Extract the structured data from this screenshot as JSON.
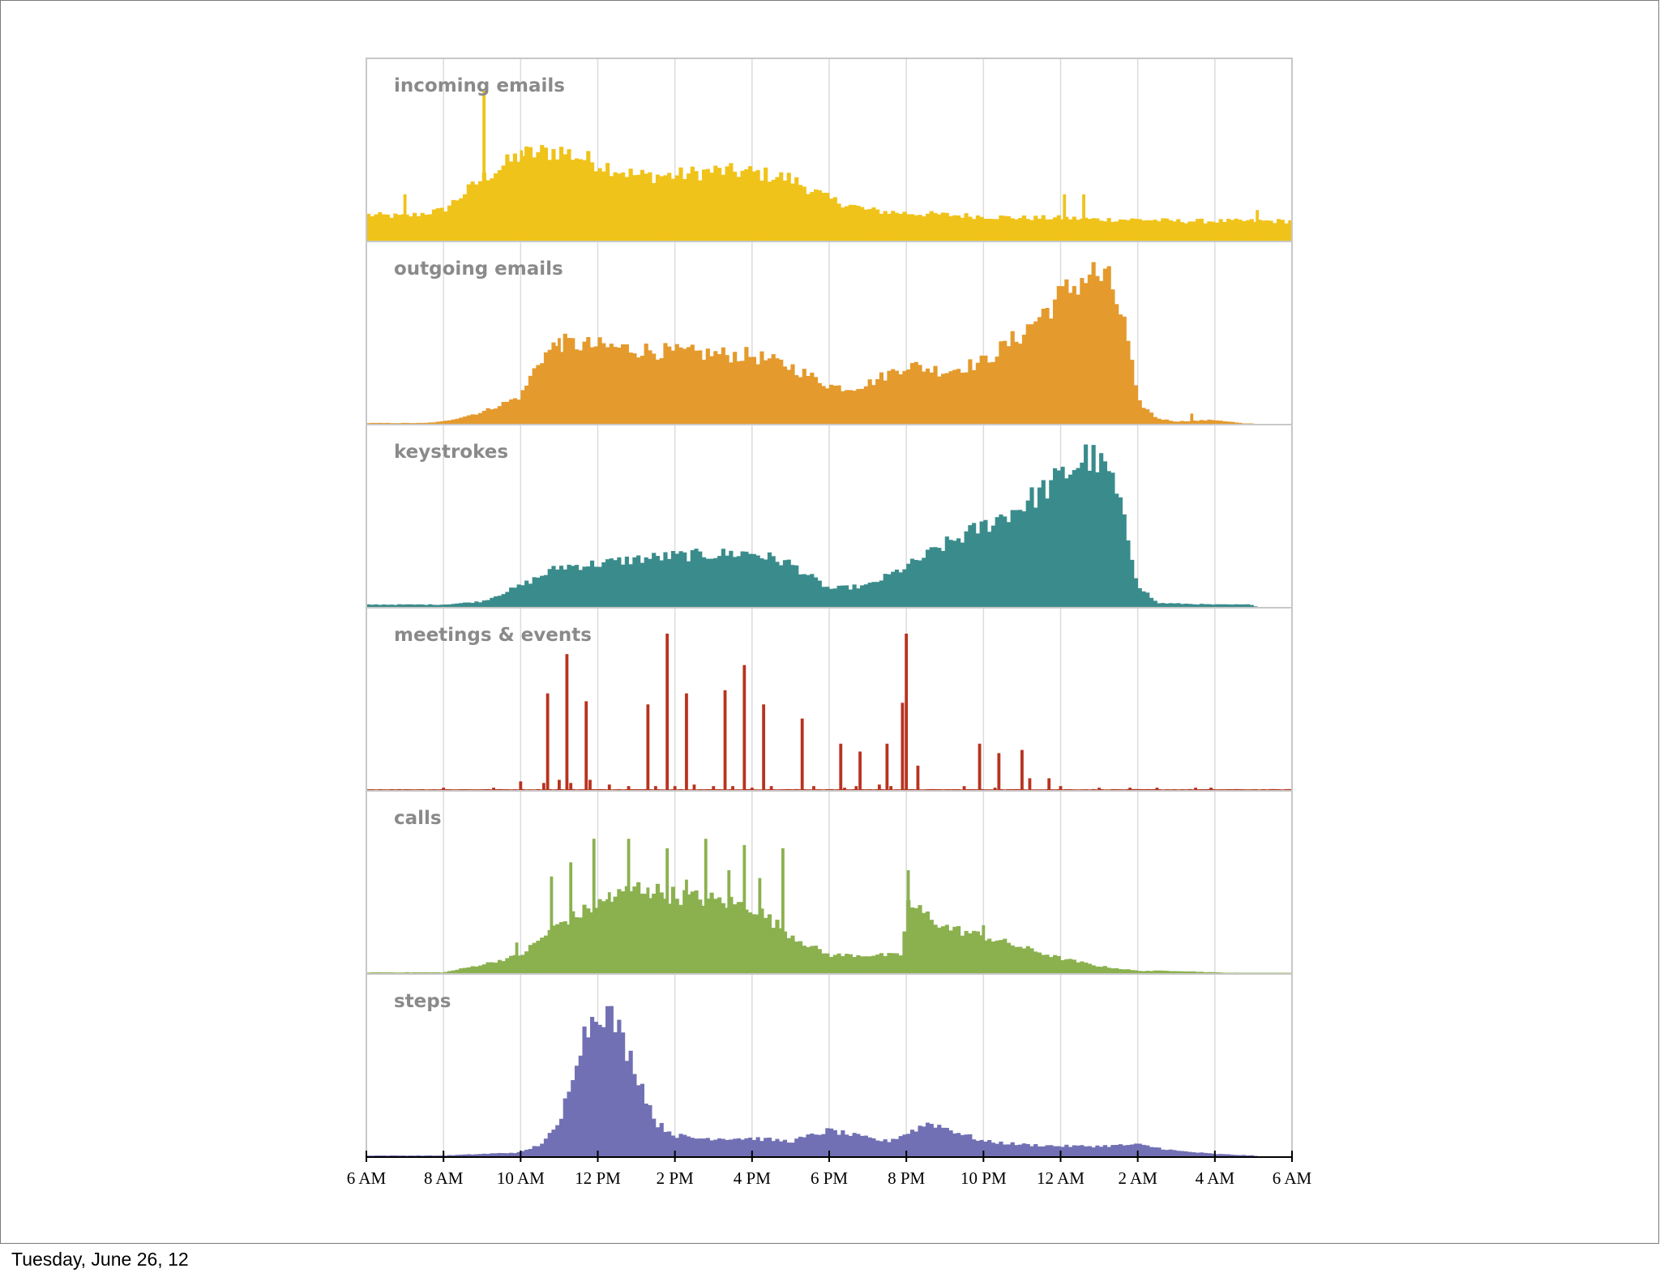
{
  "footer": {
    "date": "Tuesday, June 26, 12"
  },
  "chart_data": {
    "type": "bar",
    "x_axis": {
      "tick_labels": [
        "6 AM",
        "8 AM",
        "10 AM",
        "12 PM",
        "2 PM",
        "4 PM",
        "6 PM",
        "8 PM",
        "10 PM",
        "12 AM",
        "2 AM",
        "4 AM",
        "6 AM"
      ],
      "range_hours": [
        6,
        30
      ]
    },
    "grid": true,
    "panels": [
      {
        "title": "incoming emails",
        "color": "#f0c31a",
        "curve": [
          [
            6,
            0.17
          ],
          [
            7,
            0.16
          ],
          [
            8,
            0.2
          ],
          [
            9,
            0.4
          ],
          [
            10,
            0.55
          ],
          [
            11,
            0.58
          ],
          [
            12,
            0.5
          ],
          [
            13,
            0.42
          ],
          [
            14,
            0.42
          ],
          [
            15,
            0.45
          ],
          [
            16,
            0.44
          ],
          [
            17,
            0.4
          ],
          [
            18,
            0.27
          ],
          [
            19,
            0.2
          ],
          [
            20,
            0.18
          ],
          [
            21,
            0.17
          ],
          [
            22,
            0.16
          ],
          [
            23,
            0.15
          ],
          [
            24,
            0.15
          ],
          [
            25,
            0.14
          ],
          [
            26,
            0.14
          ],
          [
            27,
            0.13
          ],
          [
            28,
            0.13
          ],
          [
            29,
            0.13
          ],
          [
            30,
            0.13
          ]
        ],
        "spikes": [
          [
            7,
            0.3
          ],
          [
            9.05,
            0.96
          ],
          [
            10.02,
            0.58
          ],
          [
            24.1,
            0.3
          ],
          [
            24.6,
            0.3
          ],
          [
            29.1,
            0.2
          ]
        ]
      },
      {
        "title": "outgoing emails",
        "color": "#e49a2c",
        "curve": [
          [
            6,
            0.01
          ],
          [
            7.5,
            0.01
          ],
          [
            8,
            0.02
          ],
          [
            9,
            0.08
          ],
          [
            10,
            0.18
          ],
          [
            10.5,
            0.42
          ],
          [
            11,
            0.52
          ],
          [
            11.5,
            0.51
          ],
          [
            12,
            0.5
          ],
          [
            14,
            0.46
          ],
          [
            16,
            0.44
          ],
          [
            17,
            0.37
          ],
          [
            18,
            0.25
          ],
          [
            18.5,
            0.23
          ],
          [
            19,
            0.26
          ],
          [
            20,
            0.38
          ],
          [
            21,
            0.34
          ],
          [
            22,
            0.4
          ],
          [
            23,
            0.58
          ],
          [
            24,
            0.82
          ],
          [
            24.8,
            0.97
          ],
          [
            25.3,
            0.9
          ],
          [
            25.7,
            0.6
          ],
          [
            26,
            0.15
          ],
          [
            26.5,
            0.04
          ],
          [
            27,
            0.02
          ],
          [
            28,
            0.03
          ],
          [
            29,
            0.0
          ],
          [
            30,
            0.0
          ]
        ],
        "spikes": [
          [
            11,
            0.55
          ],
          [
            27.4,
            0.07
          ]
        ]
      },
      {
        "title": "keystrokes",
        "color": "#3a8c8c",
        "curve": [
          [
            6,
            0.02
          ],
          [
            8,
            0.02
          ],
          [
            9,
            0.04
          ],
          [
            10,
            0.14
          ],
          [
            11,
            0.26
          ],
          [
            12,
            0.28
          ],
          [
            13,
            0.31
          ],
          [
            14,
            0.33
          ],
          [
            16,
            0.35
          ],
          [
            17,
            0.28
          ],
          [
            17.5,
            0.2
          ],
          [
            18,
            0.12
          ],
          [
            19,
            0.14
          ],
          [
            20,
            0.26
          ],
          [
            21,
            0.4
          ],
          [
            22,
            0.52
          ],
          [
            23,
            0.65
          ],
          [
            24,
            0.83
          ],
          [
            24.7,
            0.97
          ],
          [
            25.3,
            0.85
          ],
          [
            25.7,
            0.5
          ],
          [
            26,
            0.15
          ],
          [
            26.5,
            0.03
          ],
          [
            28,
            0.02
          ],
          [
            29,
            0.02
          ],
          [
            29.1,
            0.0
          ],
          [
            30,
            0.0
          ]
        ],
        "spikes": []
      },
      {
        "title": "meetings & events",
        "color": "#b8331f",
        "curve": [
          [
            6,
            0.01
          ],
          [
            30,
            0.01
          ]
        ],
        "spikes": [
          [
            7,
            0.01
          ],
          [
            8,
            0.02
          ],
          [
            9.3,
            0.02
          ],
          [
            10,
            0.06
          ],
          [
            10.6,
            0.05
          ],
          [
            11,
            0.07
          ],
          [
            11.3,
            0.05
          ],
          [
            11.8,
            0.07
          ],
          [
            12.3,
            0.04
          ],
          [
            12.8,
            0.03
          ],
          [
            13.5,
            0.03
          ],
          [
            14,
            0.03
          ],
          [
            14.5,
            0.04
          ],
          [
            15,
            0.03
          ],
          [
            15.5,
            0.03
          ],
          [
            16,
            0.02
          ],
          [
            16.5,
            0.03
          ],
          [
            17.6,
            0.03
          ],
          [
            18.4,
            0.02
          ],
          [
            18.7,
            0.03
          ],
          [
            19.3,
            0.04
          ],
          [
            19.6,
            0.03
          ],
          [
            20.3,
            0.02
          ],
          [
            21.5,
            0.03
          ],
          [
            22.3,
            0.02
          ],
          [
            23.2,
            0.08
          ],
          [
            23.7,
            0.08
          ],
          [
            24,
            0.03
          ],
          [
            25,
            0.02
          ],
          [
            25.8,
            0.02
          ],
          [
            26.5,
            0.02
          ],
          [
            27.5,
            0.02
          ],
          [
            27.9,
            0.02
          ],
          [
            10.7,
            0.62
          ],
          [
            11.2,
            0.87
          ],
          [
            11.7,
            0.57
          ],
          [
            13.3,
            0.55
          ],
          [
            13.8,
            1.0
          ],
          [
            14.3,
            0.62
          ],
          [
            15.3,
            0.64
          ],
          [
            15.8,
            0.8
          ],
          [
            16.3,
            0.55
          ],
          [
            17.3,
            0.46
          ],
          [
            18.3,
            0.3
          ],
          [
            18.8,
            0.25
          ],
          [
            19.5,
            0.3
          ],
          [
            20.3,
            0.16
          ],
          [
            19.9,
            0.56
          ],
          [
            20.0,
            1.0
          ],
          [
            21.9,
            0.3
          ],
          [
            22.4,
            0.24
          ],
          [
            23.0,
            0.26
          ]
        ]
      },
      {
        "title": "calls",
        "color": "#8bb14f",
        "curve": [
          [
            6,
            0.01
          ],
          [
            8,
            0.01
          ],
          [
            9,
            0.06
          ],
          [
            10,
            0.12
          ],
          [
            11,
            0.32
          ],
          [
            12,
            0.44
          ],
          [
            13,
            0.55
          ],
          [
            14,
            0.5
          ],
          [
            15,
            0.47
          ],
          [
            16,
            0.43
          ],
          [
            17,
            0.25
          ],
          [
            17.5,
            0.18
          ],
          [
            18,
            0.12
          ],
          [
            19,
            0.12
          ],
          [
            19.9,
            0.12
          ],
          [
            20,
            0.45
          ],
          [
            20.5,
            0.38
          ],
          [
            21,
            0.3
          ],
          [
            22,
            0.24
          ],
          [
            23,
            0.17
          ],
          [
            24,
            0.1
          ],
          [
            25,
            0.05
          ],
          [
            26,
            0.02
          ],
          [
            27,
            0.02
          ],
          [
            28,
            0.01
          ],
          [
            30,
            0.0
          ]
        ],
        "spikes": [
          [
            9.9,
            0.2
          ],
          [
            10.8,
            0.62
          ],
          [
            11.3,
            0.71
          ],
          [
            11.9,
            0.86
          ],
          [
            12.3,
            0.52
          ],
          [
            12.8,
            0.86
          ],
          [
            13.3,
            0.55
          ],
          [
            13.8,
            0.8
          ],
          [
            14.3,
            0.6
          ],
          [
            14.8,
            0.86
          ],
          [
            15.4,
            0.66
          ],
          [
            15.8,
            0.82
          ],
          [
            16.2,
            0.61
          ],
          [
            16.8,
            0.8
          ],
          [
            20.05,
            0.66
          ],
          [
            21,
            0.3
          ],
          [
            22,
            0.31
          ]
        ]
      },
      {
        "title": "steps",
        "color": "#7270b4",
        "curve": [
          [
            6,
            0.01
          ],
          [
            8,
            0.01
          ],
          [
            9,
            0.02
          ],
          [
            10,
            0.03
          ],
          [
            10.5,
            0.08
          ],
          [
            11,
            0.2
          ],
          [
            11.5,
            0.7
          ],
          [
            12,
            0.96
          ],
          [
            12.4,
            0.88
          ],
          [
            13,
            0.55
          ],
          [
            13.5,
            0.22
          ],
          [
            14,
            0.14
          ],
          [
            14.5,
            0.12
          ],
          [
            15,
            0.12
          ],
          [
            16,
            0.12
          ],
          [
            17,
            0.1
          ],
          [
            18,
            0.17
          ],
          [
            19,
            0.12
          ],
          [
            19.5,
            0.1
          ],
          [
            20,
            0.15
          ],
          [
            20.6,
            0.22
          ],
          [
            21.2,
            0.17
          ],
          [
            22,
            0.1
          ],
          [
            23,
            0.08
          ],
          [
            24,
            0.07
          ],
          [
            25,
            0.07
          ],
          [
            26,
            0.08
          ],
          [
            27,
            0.04
          ],
          [
            28,
            0.02
          ],
          [
            29,
            0.01
          ],
          [
            29.1,
            0.0
          ],
          [
            30,
            0.0
          ]
        ],
        "spikes": []
      }
    ]
  }
}
